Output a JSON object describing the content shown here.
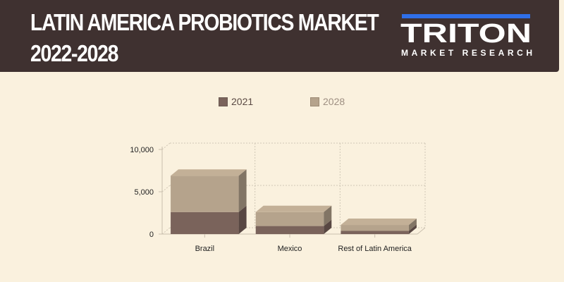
{
  "header": {
    "title_line1": "LATIN AMERICA PROBIOTICS MARKET",
    "title_line2": "2022-2028",
    "logo_text": "TRITON",
    "logo_subtext": "MARKET RESEARCH"
  },
  "colors": {
    "header_bg": "#3f3130",
    "background": "#faf1de",
    "series_2021": "#7a635b",
    "series_2028": "#b5a38c",
    "logo_blue": "#2f6fe8"
  },
  "chart_data": {
    "type": "bar",
    "stacked": true,
    "three_d": true,
    "categories": [
      "Brazil",
      "Mexico",
      "Rest of Latin America"
    ],
    "series": [
      {
        "name": "2021",
        "values": [
          2600,
          950,
          380
        ]
      },
      {
        "name": "2028",
        "values": [
          4300,
          1650,
          700
        ]
      }
    ],
    "yticks": [
      "0",
      "5,000",
      "10,000"
    ],
    "ylim": [
      0,
      10000
    ],
    "grid": true,
    "legend_position": "top"
  }
}
